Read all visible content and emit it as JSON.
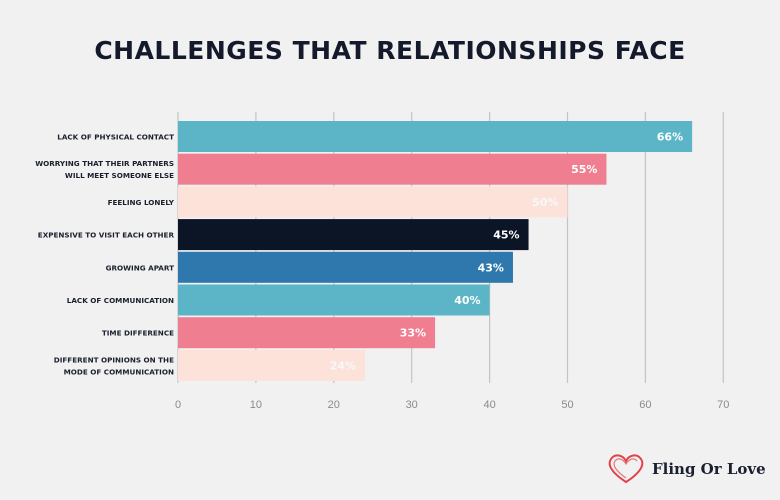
{
  "chart_data": {
    "type": "bar",
    "orientation": "horizontal",
    "title": "CHALLENGES THAT RELATIONSHIPS FACE",
    "categories": [
      [
        "LACK OF PHYSICAL CONTACT"
      ],
      [
        "WORRYING THAT THEIR PARTNERS",
        "WILL MEET SOMEONE ELSE"
      ],
      [
        "FEELING LONELY"
      ],
      [
        "EXPENSIVE TO VISIT EACH OTHER"
      ],
      [
        "GROWING APART"
      ],
      [
        "LACK OF COMMUNICATION"
      ],
      [
        "TIME DIFFERENCE"
      ],
      [
        "DIFFERENT OPINIONS ON THE",
        "MODE OF COMMUNICATION"
      ]
    ],
    "values": [
      66,
      55,
      50,
      45,
      43,
      40,
      33,
      24
    ],
    "value_labels": [
      "66%",
      "55%",
      "50%",
      "45%",
      "43%",
      "40%",
      "33%",
      "24%"
    ],
    "bar_colors": [
      "#5bb5c6",
      "#ef7f90",
      "#fde2d9",
      "#0c1526",
      "#2f78ad",
      "#5bb5c6",
      "#ef7f90",
      "#fde2d9"
    ],
    "xlim": [
      0,
      70
    ],
    "xticks": [
      "0",
      "10",
      "20",
      "30",
      "40",
      "50",
      "60",
      "70"
    ],
    "grid": true
  },
  "brand": {
    "name": "Fling Or Love",
    "icon": "heart-outline-icon",
    "color": "#e2434b"
  }
}
